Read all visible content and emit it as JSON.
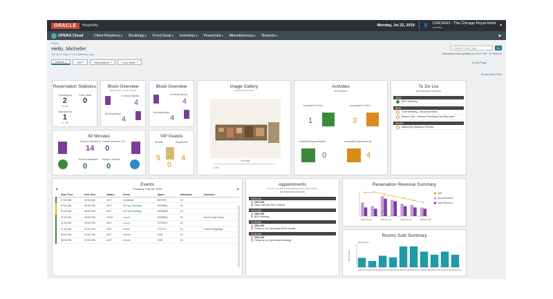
{
  "topbar": {
    "brand": "ORACLE",
    "brand_sub": "Hospitality",
    "date": "Monday, Jul 22, 2019",
    "hotel_code": "CHICAGO - The Chicago Royal Hotel",
    "hotel_sub": "mwintle"
  },
  "nav": {
    "product": "OPERA Cloud",
    "items": [
      "Client Relations",
      "Bookings",
      "Front Desk",
      "Inventory",
      "Financials",
      "Miscellaneous",
      "Reports"
    ]
  },
  "breadcrumb": "Home",
  "greeting": "Hello, Michelle!",
  "greeting_sub": "Not you? Sign in as a different user.",
  "search": {
    "placeholder": "Search Card Tags",
    "go": "Go"
  },
  "updated": "Dashboard last updated at 03:47 PM",
  "refresh": "Refresh",
  "tabs": [
    "Default",
    "GM",
    "Hiring Alerts",
    "Front Desk"
  ],
  "add_page": "Add Page",
  "add_tiles": "Add New Tiles",
  "reservation_stats": {
    "title": "Reservation Statistics",
    "items": [
      {
        "label": "Turndowns",
        "value": "2",
        "sub": "4 / 15"
      },
      {
        "label": "Over Ride",
        "value": "0",
        "sub": ""
      },
      {
        "label": "Departures",
        "value": "1",
        "sub": "1 / 15"
      }
    ]
  },
  "block_overview_1": {
    "title": "Block Overview",
    "sub": "Black Cream (4) #6 75 RPM",
    "in_house": "In House Blocks",
    "in_house_value": "4",
    "arriving": "Arriving Blocks",
    "arriving_value": "4"
  },
  "block_overview_2": {
    "title": "Block Overview",
    "in_house": "In House Blocks",
    "in_house_value": "4",
    "arriving": "Arriving Blocks",
    "arriving_value": "4"
  },
  "image_gallery": {
    "title": "Image Gallery",
    "sub": "CHICAGO Floor Plan",
    "caption": "1st Floor",
    "pager": "1 of 4"
  },
  "activities": {
    "title": "Activities",
    "sub": "All Owners",
    "completed_todos": "Completed To Do's",
    "completed_todos_value": "1",
    "incomplete_todos": "Incomplete To Do's",
    "incomplete_todos_value": "3",
    "completed_appts": "Completed Appointments",
    "completed_appts_value": "0",
    "incomplete_appts": "Incomplete Appointments",
    "incomplete_appts_value": "4"
  },
  "todo": {
    "title": "To Do List",
    "sub": "All Selected Owners",
    "sections": [
      {
        "header": "VTLE",
        "items": [
          {
            "status": "done",
            "text": "BEO Meeting"
          }
        ]
      },
      {
        "header": "NEW",
        "items": [
          {
            "status": "open",
            "text": "Chef Meeting - Seasonal Menu"
          },
          {
            "status": "open",
            "text": "Return Call - Discuss Planning Live Buy-state"
          }
        ]
      },
      {
        "header": "SALES",
        "items": [
          {
            "status": "open",
            "text": "Marketing Statistics Review"
          }
        ]
      }
    ]
  },
  "sixty_minutes": {
    "title": "60 Minutes",
    "rooms_checked_in": "Rooms Checked In",
    "rooms_checked_in_value": "14",
    "guest_checked_out": "Guests Checked Out",
    "guest_checked_out_value": "0",
    "rooms_inspected": "Rooms Inspected",
    "rooms_inspected_value": "0",
    "rooms_cleaned": "Rooms Cleaned",
    "rooms_cleaned_value": "0"
  },
  "vip": {
    "title": "VIP Guests",
    "arrivals": "Arrivals",
    "arrivals_value": "5",
    "departures": "Departures",
    "departures_value": "4",
    "inhouse_value": "0"
  },
  "events": {
    "title": "Events",
    "date": "Thursday, July 25, 2019",
    "columns": [
      "Start Time",
      "End Time",
      "Status",
      "Event",
      "Space",
      "Attendees",
      "Doorcard"
    ],
    "rows": [
      {
        "color": "#3a8a3a",
        "start": "07:00 AM",
        "end": "09:00 AM",
        "status": "ACT",
        "event": "Breakfast",
        "space": "BISTRO",
        "att": "10",
        "door": ""
      },
      {
        "color": "#d9b81c",
        "start": "07:00 AM",
        "end": "06:00 PM",
        "status": "ACT",
        "event": "All Day Meetings",
        "space": "GRDBALL",
        "att": "10",
        "door": ""
      },
      {
        "color": "#d9b81c",
        "start": "07:00 AM",
        "end": "06:00 PM",
        "status": "ACT",
        "event": "All Day Meetings",
        "space": "GRDBALL",
        "att": "10",
        "door": ""
      },
      {
        "color": "#3a8a3a",
        "start": "07:00 AM",
        "end": "05:00 PM",
        "status": "TENT",
        "event": "Lunch",
        "space": "GRDBALL",
        "att": "10",
        "door": "Event Trade Show"
      },
      {
        "color": "#3a8a3a",
        "start": "11:00 AM",
        "end": "12:00 PM",
        "status": "ACT",
        "event": "Lunch",
        "space": "FOYER4",
        "att": "10",
        "door": ""
      },
      {
        "color": "#3a8a3a",
        "start": "11:00 AM",
        "end": "01:00 PM",
        "status": "DEF",
        "event": "Break",
        "space": "CT-CTY",
        "att": "10",
        "door": "Travel Hospitality"
      },
      {
        "color": "#3a8a3a",
        "start": "05:00 PM",
        "end": "07:00 PM",
        "status": "ACT",
        "event": "Dinner",
        "space": "FIVE",
        "att": "10",
        "door": ""
      },
      {
        "color": "#3a8a3a",
        "start": "05:00 PM",
        "end": "07:00 PM",
        "status": "ACT",
        "event": "Dinner",
        "space": "FIVE",
        "att": "10",
        "door": ""
      }
    ]
  },
  "appointments": {
    "title": "Appointments",
    "sub": "Account Type BROCHURE/MARKETING INFO PACKS",
    "owners": "All Selected Owners",
    "slots": [
      {
        "time": "08:45 AM",
        "item": "DELUXE",
        "text": "Daily Call with Site Contract"
      },
      {
        "time": "09:00 AM",
        "item": "DELUXE",
        "text": "BEO Meeting"
      },
      {
        "time": "10:00 AM",
        "item": "DELUXE",
        "text": "Follow up on Upcoming Block Details"
      },
      {
        "time": "10:30 AM",
        "item": "DELUXE",
        "text": "Follow up on Upcoming Bookings"
      }
    ]
  },
  "chart_data": [
    {
      "type": "bar",
      "title": "Reservation Revenue Summary",
      "categories": [
        "2019-07-22",
        "2019-07-23",
        "2019-07-24",
        "2019-07-25",
        "2019-07-26",
        "2019-07-27",
        "2019-07-28"
      ],
      "series": [
        {
          "name": "ADR",
          "kind": "line",
          "color": "#e0a030",
          "values": [
            95,
            97,
            88,
            80,
            72,
            63,
            55
          ]
        },
        {
          "name": "Room Revenue",
          "kind": "bar",
          "color": "#c79bd8",
          "values": [
            55,
            40,
            80,
            65,
            50,
            45,
            35
          ]
        },
        {
          "name": "Other Revenue",
          "kind": "bar",
          "color": "#7b3e97",
          "values": [
            35,
            30,
            70,
            60,
            40,
            35,
            30
          ]
        }
      ],
      "legend": "right"
    },
    {
      "type": "bar",
      "title": "Rooms Sold Summary",
      "categories": [
        "2019-07-22",
        "2019-07-23",
        "2019-07-24",
        "2019-07-25",
        "2019-07-26",
        "2019-07-27",
        "2019-07-28",
        "2019-07-29",
        "2019-07-30",
        "2019-07-31"
      ],
      "series": [
        {
          "name": "By Property",
          "color": "#1e9aa8",
          "values": [
            18,
            12,
            22,
            19,
            40,
            40,
            30,
            24,
            30,
            24
          ]
        }
      ],
      "ylabel": "By Property"
    }
  ]
}
